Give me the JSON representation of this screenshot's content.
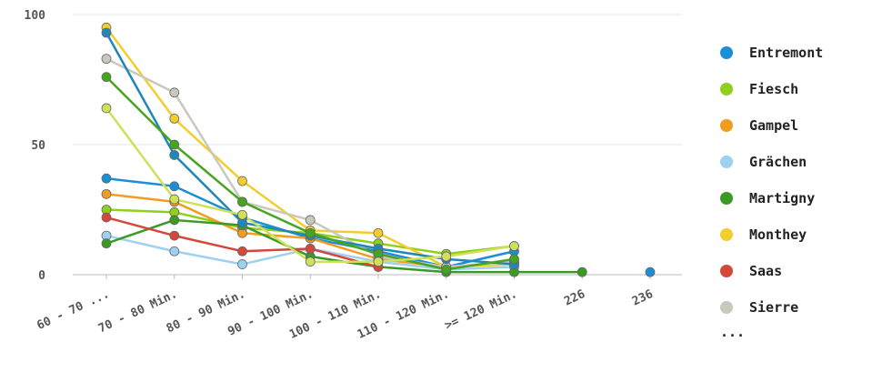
{
  "chart_data": {
    "type": "line",
    "categories": [
      "60 - 70 ...",
      "70 - 80 Min.",
      "80 - 90 Min.",
      "90 - 100 Min.",
      "100 - 110  Min.",
      "110 - 120 Min.",
      ">= 120 Min.",
      "226",
      "236"
    ],
    "yticks": [
      "0",
      "50",
      "100"
    ],
    "ylim": [
      0,
      100
    ],
    "grid": true,
    "legend_position": "right",
    "legend_more": "...",
    "series": [
      {
        "name": "Entremont",
        "color": "#1a8fd6",
        "values": [
          37,
          34,
          22,
          14,
          9,
          3,
          9,
          null,
          1
        ]
      },
      {
        "name": "Fiesch",
        "color": "#8fcf1d",
        "values": [
          25,
          24,
          18,
          16,
          12,
          8,
          11,
          null,
          null
        ]
      },
      {
        "name": "Gampel",
        "color": "#f29c1f",
        "values": [
          31,
          28,
          16,
          14,
          6,
          3,
          5,
          null,
          null
        ]
      },
      {
        "name": "Grächen",
        "color": "#9fd0f0",
        "values": [
          15,
          9,
          4,
          10,
          5,
          2,
          3,
          null,
          null
        ]
      },
      {
        "name": "Martigny",
        "color": "#3a9a26",
        "values": [
          12,
          21,
          19,
          7,
          3,
          1,
          1,
          1,
          null
        ]
      },
      {
        "name": "Monthey",
        "color": "#f3cd2d",
        "values": [
          95,
          60,
          36,
          17,
          16,
          3,
          4,
          null,
          null
        ]
      },
      {
        "name": "Saas",
        "color": "#d4473b",
        "values": [
          22,
          15,
          9,
          10,
          3,
          null,
          null,
          null,
          null
        ]
      },
      {
        "name": "Sierre",
        "color": "#c8c8be",
        "values": [
          83,
          70,
          28,
          21,
          7,
          3,
          5,
          null,
          null
        ]
      },
      {
        "name": "",
        "color": "#1f88b9",
        "values": [
          93,
          46,
          20,
          15,
          10,
          6,
          4,
          null,
          null
        ]
      },
      {
        "name": "",
        "color": "#45a51f",
        "values": [
          76,
          50,
          28,
          16,
          8,
          2,
          6,
          null,
          null
        ]
      },
      {
        "name": "",
        "color": "#cfe05a",
        "values": [
          64,
          29,
          23,
          5,
          5,
          7,
          11,
          null,
          null
        ]
      }
    ]
  }
}
